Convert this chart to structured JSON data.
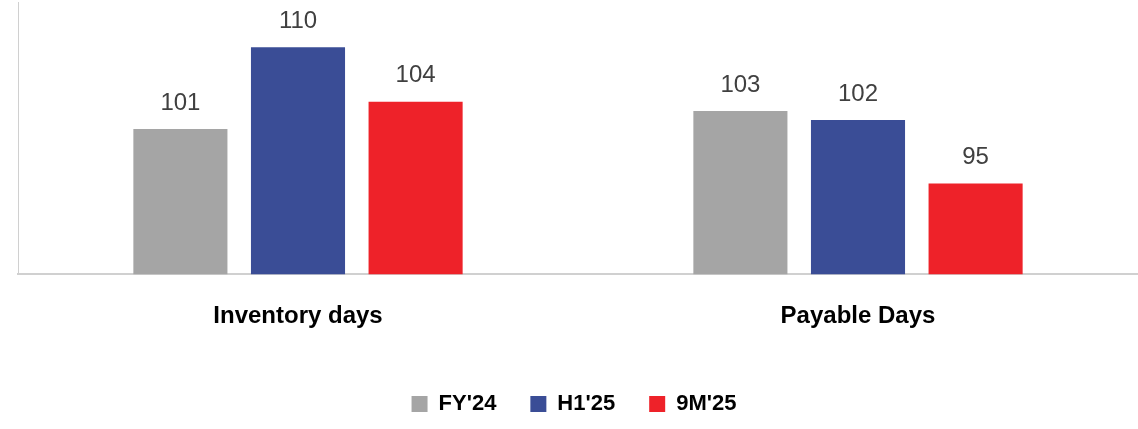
{
  "chart_data": {
    "type": "bar",
    "categories": [
      "Inventory days",
      "Payable Days"
    ],
    "series": [
      {
        "name": "FY'24",
        "color": "#a5a5a5",
        "values": [
          101,
          103
        ]
      },
      {
        "name": "H1'25",
        "color": "#3a4d96",
        "values": [
          110,
          102
        ]
      },
      {
        "name": "9M'25",
        "color": "#ee2229",
        "values": [
          104,
          95
        ]
      }
    ],
    "ylim": [
      85,
      115
    ],
    "tick_labels": "x",
    "grid": false,
    "legend": "bottom",
    "data_labels": true
  }
}
